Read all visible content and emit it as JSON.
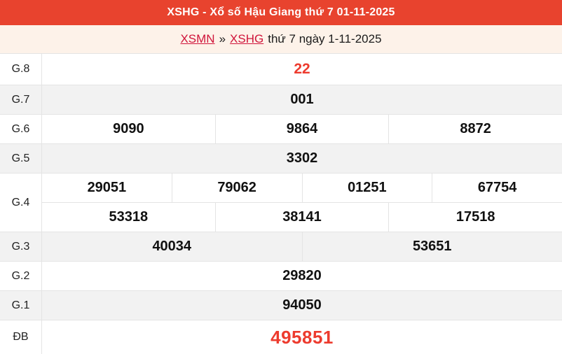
{
  "header": {
    "title": "XSHG - Xổ số Hậu Giang thứ 7 01-11-2025"
  },
  "breadcrumb": {
    "region_link": "XSMN",
    "separator": "»",
    "province_link": "XSHG",
    "suffix": "thứ 7 ngày 1-11-2025"
  },
  "colors": {
    "header_bg": "#e8432e",
    "page_bg": "#fdf2e9",
    "link_red": "#d0143a",
    "number_red": "#ed3b2e",
    "row_alt_bg": "#f2f2f2",
    "border": "#e4e4e4"
  },
  "table": {
    "rows": {
      "g8": {
        "label": "G.8",
        "values": [
          "22"
        ]
      },
      "g7": {
        "label": "G.7",
        "values": [
          "001"
        ]
      },
      "g6": {
        "label": "G.6",
        "values": [
          "9090",
          "9864",
          "8872"
        ]
      },
      "g5": {
        "label": "G.5",
        "values": [
          "3302"
        ]
      },
      "g4": {
        "label": "G.4",
        "line1": [
          "29051",
          "79062",
          "01251",
          "67754"
        ],
        "line2": [
          "53318",
          "38141",
          "17518"
        ]
      },
      "g3": {
        "label": "G.3",
        "values": [
          "40034",
          "53651"
        ]
      },
      "g2": {
        "label": "G.2",
        "values": [
          "29820"
        ]
      },
      "g1": {
        "label": "G.1",
        "values": [
          "94050"
        ]
      },
      "db": {
        "label": "ĐB",
        "values": [
          "495851"
        ]
      }
    }
  }
}
